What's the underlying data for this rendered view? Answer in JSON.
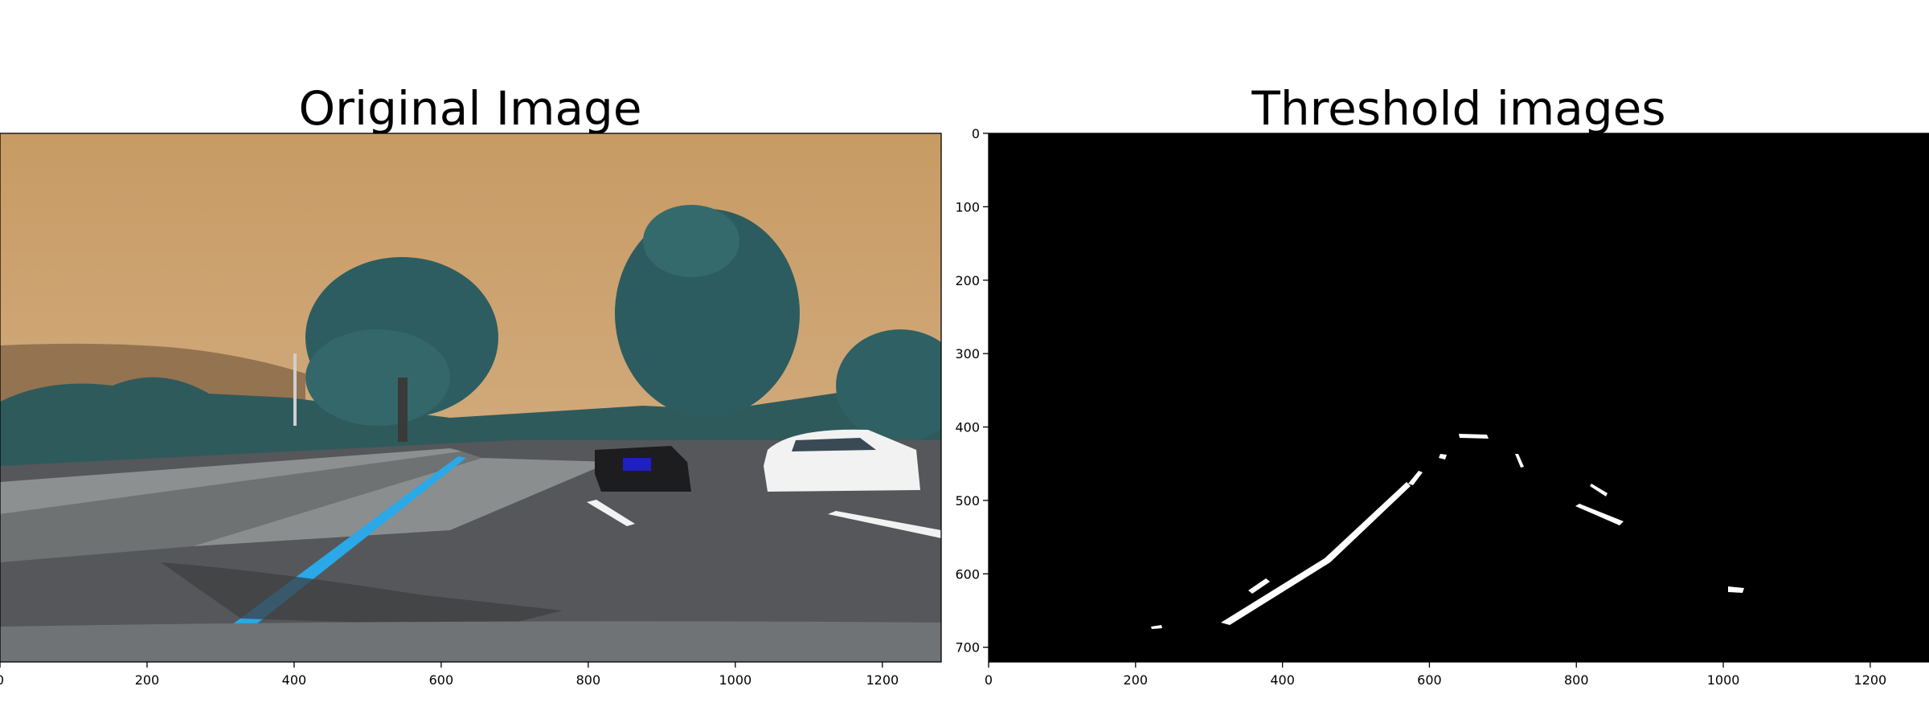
{
  "panels": [
    {
      "title": "Original Image",
      "kind": "photo"
    },
    {
      "title": "Threshold images",
      "kind": "binary-mask"
    }
  ],
  "chart_data": [
    {
      "type": "image",
      "title": "Original Image",
      "xlim": [
        0,
        1280
      ],
      "ylim": [
        720,
        0
      ],
      "x_ticks": [
        0,
        200,
        400,
        600,
        800,
        1000,
        1200
      ],
      "y_ticks": [],
      "colors": {
        "sky": "#c99a63",
        "trees": "#2f5a5c",
        "road": "#4a4a4a",
        "lane_blue": "#2aa8e8",
        "car_white": "#f2f2f2"
      }
    },
    {
      "type": "image",
      "title": "Threshold images",
      "xlim": [
        0,
        1280
      ],
      "ylim": [
        720,
        0
      ],
      "x_ticks": [
        0,
        200,
        400,
        600,
        800,
        1000,
        1200
      ],
      "y_ticks": [
        0,
        100,
        200,
        300,
        400,
        500,
        600,
        700
      ],
      "colors": {
        "background": "#000000",
        "foreground": "#ffffff"
      }
    }
  ]
}
